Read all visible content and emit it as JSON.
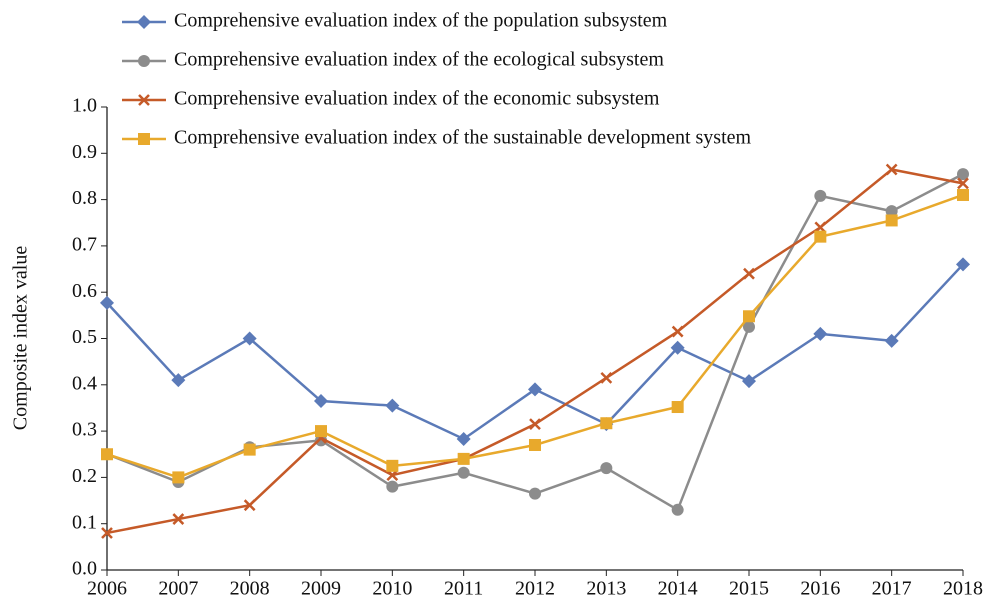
{
  "chart_data": {
    "type": "line",
    "y_label": "Composite index value",
    "categories": [
      "2006",
      "2007",
      "2008",
      "2009",
      "2010",
      "2011",
      "2012",
      "2013",
      "2014",
      "2015",
      "2016",
      "2017",
      "2018"
    ],
    "series": [
      {
        "name": "Comprehensive evaluation index of the population subsystem",
        "color": "#5b7ab8",
        "marker": "diamond",
        "values": [
          0.577,
          0.41,
          0.5,
          0.365,
          0.355,
          0.283,
          0.39,
          0.315,
          0.48,
          0.408,
          0.51,
          0.495,
          0.66
        ]
      },
      {
        "name": "Comprehensive evaluation index of the ecological subsystem",
        "color": "#8c8c8c",
        "marker": "circle",
        "values": [
          0.25,
          0.19,
          0.265,
          0.28,
          0.18,
          0.21,
          0.165,
          0.22,
          0.13,
          0.525,
          0.808,
          0.775,
          0.855
        ]
      },
      {
        "name": "Comprehensive evaluation index of the economic subsystem",
        "color": "#c55a28",
        "marker": "x",
        "values": [
          0.08,
          0.11,
          0.14,
          0.285,
          0.205,
          0.24,
          0.315,
          0.415,
          0.515,
          0.64,
          0.74,
          0.865,
          0.835
        ]
      },
      {
        "name": "Comprehensive evaluation index of the sustainable development system",
        "color": "#e8a92c",
        "marker": "square",
        "values": [
          0.25,
          0.2,
          0.26,
          0.3,
          0.225,
          0.24,
          0.27,
          0.317,
          0.352,
          0.548,
          0.72,
          0.755,
          0.81
        ]
      }
    ],
    "ylim": [
      0,
      1
    ],
    "yticks": [
      {
        "value": 0,
        "label": "0.0"
      },
      0.1,
      0.2,
      0.3,
      0.4,
      0.5,
      0.6,
      0.7,
      0.8,
      0.9,
      {
        "value": 1,
        "label": "1.0"
      }
    ],
    "legend": "top-left"
  }
}
